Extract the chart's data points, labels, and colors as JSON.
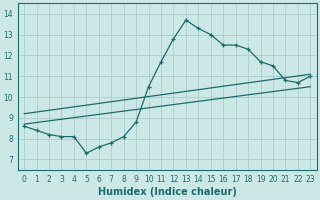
{
  "xlabel": "Humidex (Indice chaleur)",
  "ylabel": "",
  "xlim": [
    -0.5,
    23.5
  ],
  "ylim": [
    6.5,
    14.5
  ],
  "xticks": [
    0,
    1,
    2,
    3,
    4,
    5,
    6,
    7,
    8,
    9,
    10,
    11,
    12,
    13,
    14,
    15,
    16,
    17,
    18,
    19,
    20,
    21,
    22,
    23
  ],
  "yticks": [
    7,
    8,
    9,
    10,
    11,
    12,
    13,
    14
  ],
  "bg_color": "#cce8e6",
  "grid_color": "#aaccca",
  "line_color": "#1a6b6b",
  "main_x": [
    0,
    1,
    2,
    3,
    4,
    5,
    6,
    7,
    8,
    9,
    10,
    11,
    12,
    13,
    14,
    15,
    16,
    17,
    18,
    19,
    20,
    21,
    22,
    23
  ],
  "main_y": [
    8.6,
    8.4,
    8.2,
    8.1,
    8.1,
    7.3,
    7.6,
    7.8,
    8.1,
    8.8,
    10.5,
    11.7,
    12.8,
    13.7,
    13.3,
    13.0,
    12.5,
    12.5,
    12.3,
    11.7,
    11.5,
    10.8,
    10.7,
    11.0
  ],
  "line2_x": [
    0,
    23
  ],
  "line2_y": [
    8.7,
    10.5
  ],
  "line3_x": [
    0,
    23
  ],
  "line3_y": [
    9.2,
    11.1
  ],
  "title_fontsize": 7,
  "xlabel_fontsize": 7,
  "tick_fontsize": 5.5
}
